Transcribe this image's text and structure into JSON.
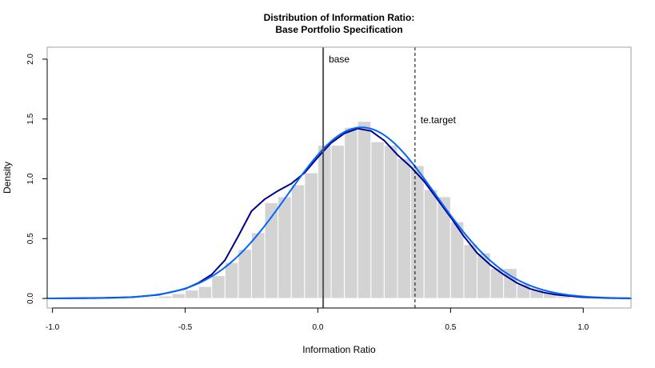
{
  "chart_data": {
    "type": "bar",
    "title": "Distribution of Information Ratio:",
    "subtitle": "Base Portfolio Specification",
    "xlabel": "Information Ratio",
    "ylabel": "Density",
    "xlim": [
      -1.02,
      1.18
    ],
    "ylim": [
      -0.08,
      2.1
    ],
    "x_ticks": [
      -1.0,
      -0.5,
      0.0,
      0.5,
      1.0
    ],
    "x_tick_labels": [
      "-1.0",
      "-0.5",
      "0.0",
      "0.5",
      "1.0"
    ],
    "y_ticks": [
      0.0,
      0.5,
      1.0,
      1.5,
      2.0
    ],
    "y_tick_labels": [
      "0.0",
      "0.5",
      "1.0",
      "1.5",
      "2.0"
    ],
    "histogram": {
      "bin_width": 0.05,
      "bin_starts": [
        -0.65,
        -0.6,
        -0.55,
        -0.5,
        -0.45,
        -0.4,
        -0.35,
        -0.3,
        -0.25,
        -0.2,
        -0.15,
        -0.1,
        -0.05,
        0.0,
        0.05,
        0.1,
        0.15,
        0.2,
        0.25,
        0.3,
        0.35,
        0.4,
        0.45,
        0.5,
        0.55,
        0.6,
        0.65,
        0.7,
        0.75,
        0.8,
        0.85,
        0.9,
        0.95
      ],
      "densities": [
        0.01,
        0.02,
        0.04,
        0.07,
        0.1,
        0.19,
        0.3,
        0.41,
        0.55,
        0.8,
        0.85,
        0.95,
        1.05,
        1.28,
        1.28,
        1.43,
        1.48,
        1.31,
        1.28,
        1.17,
        1.11,
        0.91,
        0.85,
        0.64,
        0.45,
        0.38,
        0.25,
        0.25,
        0.12,
        0.07,
        0.05,
        0.02,
        0.01
      ],
      "color": "#d3d3d3"
    },
    "series": [
      {
        "style": "kernel-density",
        "color": "#00008b",
        "x": [
          -1.02,
          -0.8,
          -0.7,
          -0.6,
          -0.5,
          -0.45,
          -0.4,
          -0.35,
          -0.3,
          -0.25,
          -0.2,
          -0.15,
          -0.1,
          -0.05,
          0.0,
          0.05,
          0.1,
          0.15,
          0.2,
          0.25,
          0.3,
          0.35,
          0.4,
          0.45,
          0.5,
          0.55,
          0.6,
          0.65,
          0.7,
          0.75,
          0.8,
          0.85,
          0.9,
          1.0,
          1.1,
          1.18
        ],
        "y": [
          0.0,
          0.005,
          0.01,
          0.03,
          0.08,
          0.13,
          0.2,
          0.32,
          0.52,
          0.73,
          0.83,
          0.9,
          0.96,
          1.05,
          1.18,
          1.3,
          1.38,
          1.42,
          1.4,
          1.32,
          1.2,
          1.1,
          0.98,
          0.83,
          0.68,
          0.52,
          0.38,
          0.28,
          0.2,
          0.13,
          0.08,
          0.05,
          0.03,
          0.01,
          0.003,
          0.0
        ]
      },
      {
        "style": "normal-fit",
        "color": "#0066ff",
        "mean": 0.165,
        "sd": 0.279
      }
    ],
    "vlines": [
      {
        "label": "base",
        "x": 0.02,
        "style": "solid",
        "color": "#555555",
        "label_y": 2.0
      },
      {
        "label": "te.target",
        "x": 0.366,
        "style": "dashed",
        "color": "#000000",
        "label_y": 1.49
      }
    ],
    "grid": false,
    "legend": "none"
  }
}
